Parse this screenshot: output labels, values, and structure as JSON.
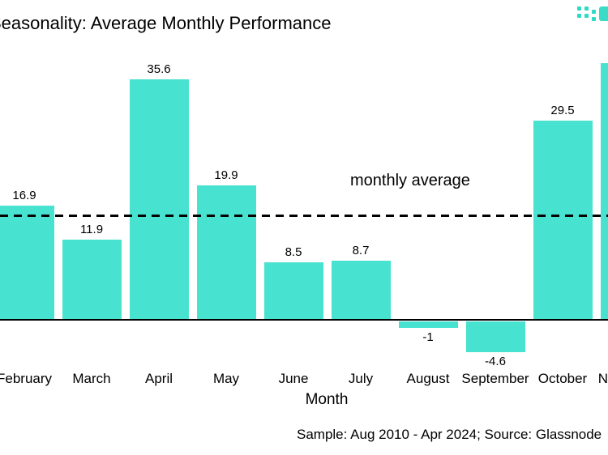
{
  "chart_data": {
    "type": "bar",
    "title": "Seasonality: Average Monthly Performance",
    "xlabel": "Month",
    "ylabel": "",
    "categories": [
      "February",
      "March",
      "April",
      "May",
      "June",
      "July",
      "August",
      "September",
      "October",
      "November"
    ],
    "values": [
      16.9,
      11.9,
      35.6,
      19.9,
      8.5,
      8.7,
      -1,
      -4.6,
      29.5,
      38
    ],
    "value_labels": [
      "16.9",
      "11.9",
      "35.6",
      "19.9",
      "8.5",
      "8.7",
      "-1",
      "-4.6",
      "29.5",
      ""
    ],
    "average_line": {
      "label": "monthly average",
      "value": 15.5,
      "style": "dashed"
    },
    "ylim": [
      -8,
      40
    ],
    "bar_color": "#47e2d0",
    "grid": false,
    "legend": "none"
  },
  "footer": {
    "source_text": "Sample: Aug 2010 - Apr 2024; Source: Glassnode"
  },
  "logo": {
    "color": "#2fd9c4"
  }
}
